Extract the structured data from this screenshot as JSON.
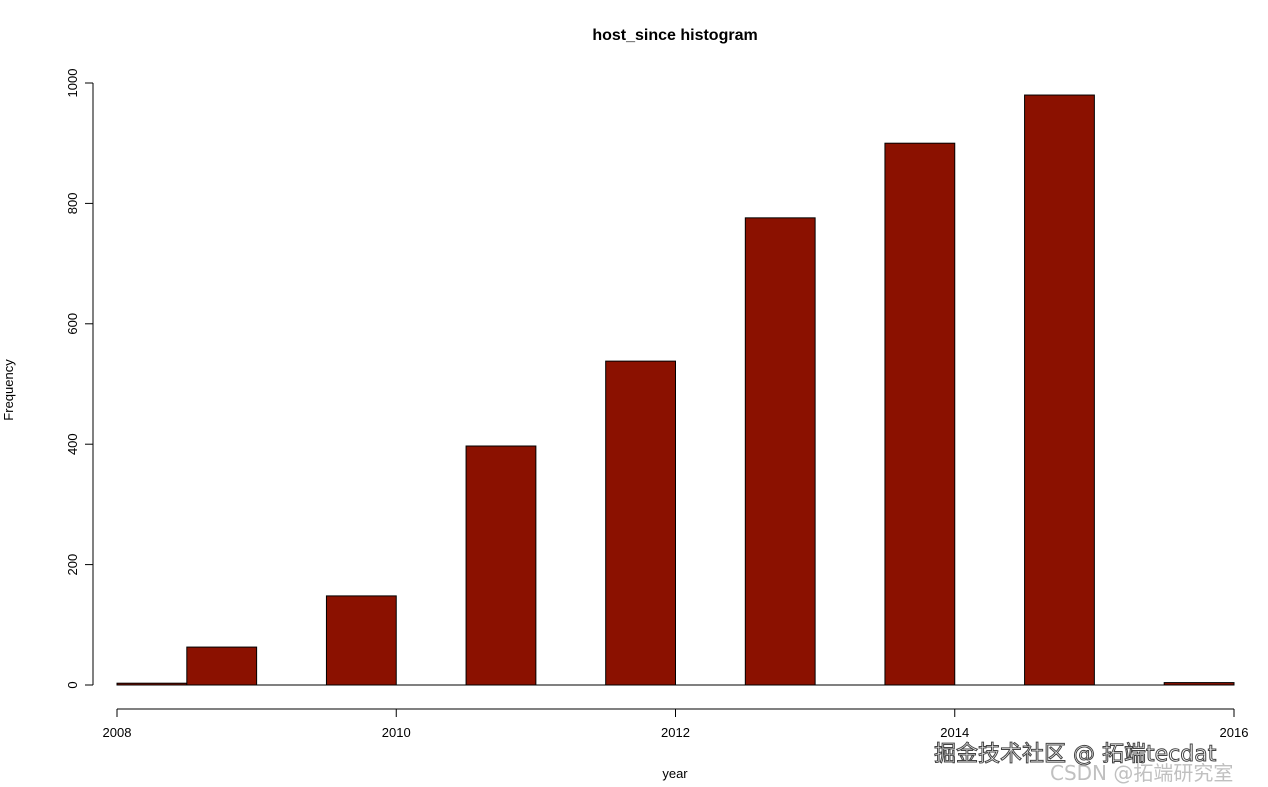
{
  "chart_data": {
    "type": "bar",
    "title": "host_since histogram",
    "xlabel": "year",
    "ylabel": "Frequency",
    "bin_width": 0.5,
    "bins": [
      {
        "start": 2008.0,
        "end": 2008.5,
        "count": 3
      },
      {
        "start": 2008.5,
        "end": 2009.0,
        "count": 63
      },
      {
        "start": 2009.0,
        "end": 2009.5,
        "count": 0
      },
      {
        "start": 2009.5,
        "end": 2010.0,
        "count": 148
      },
      {
        "start": 2010.0,
        "end": 2010.5,
        "count": 0
      },
      {
        "start": 2010.5,
        "end": 2011.0,
        "count": 397
      },
      {
        "start": 2011.0,
        "end": 2011.5,
        "count": 0
      },
      {
        "start": 2011.5,
        "end": 2012.0,
        "count": 538
      },
      {
        "start": 2012.0,
        "end": 2012.5,
        "count": 0
      },
      {
        "start": 2012.5,
        "end": 2013.0,
        "count": 776
      },
      {
        "start": 2013.0,
        "end": 2013.5,
        "count": 0
      },
      {
        "start": 2013.5,
        "end": 2014.0,
        "count": 900
      },
      {
        "start": 2014.0,
        "end": 2014.5,
        "count": 0
      },
      {
        "start": 2014.5,
        "end": 2015.0,
        "count": 980
      },
      {
        "start": 2015.0,
        "end": 2015.5,
        "count": 0
      },
      {
        "start": 2015.5,
        "end": 2016.0,
        "count": 4
      }
    ],
    "xlim": [
      2008,
      2016
    ],
    "ylim": [
      0,
      1000
    ],
    "xticks": [
      "2008",
      "2010",
      "2012",
      "2014",
      "2016"
    ],
    "yticks": [
      "0",
      "200",
      "400",
      "600",
      "800",
      "1000"
    ],
    "grid": false,
    "bar_color": "#8b1100"
  },
  "watermark": {
    "line1": "掘金技术社区 @ 拓端tecdat",
    "line2": "CSDN @拓端研究室"
  }
}
